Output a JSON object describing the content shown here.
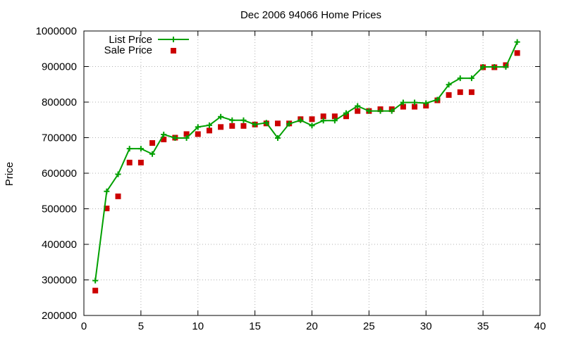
{
  "chart_data": {
    "type": "line",
    "title": "Dec 2006 94066 Home Prices",
    "xlabel": "",
    "ylabel": "Price",
    "xlim": [
      0,
      40
    ],
    "ylim": [
      200000,
      1000000
    ],
    "xticks": [
      0,
      5,
      10,
      15,
      20,
      25,
      30,
      35,
      40
    ],
    "yticks": [
      200000,
      300000,
      400000,
      500000,
      600000,
      700000,
      800000,
      900000,
      1000000
    ],
    "grid": true,
    "legend_position": "top-left",
    "series": [
      {
        "name": "List Price",
        "style": "line+cross",
        "color": "#00a000",
        "x": [
          1,
          2,
          3,
          4,
          5,
          6,
          7,
          8,
          9,
          10,
          11,
          12,
          13,
          14,
          15,
          16,
          17,
          18,
          19,
          20,
          21,
          22,
          23,
          24,
          25,
          26,
          27,
          28,
          29,
          30,
          31,
          32,
          33,
          34,
          35,
          36,
          37,
          38
        ],
        "y": [
          298000,
          549000,
          597000,
          669000,
          669000,
          654000,
          709000,
          699000,
          699000,
          730000,
          735000,
          759000,
          749000,
          749000,
          737000,
          742000,
          699000,
          739000,
          749000,
          734000,
          748000,
          748000,
          769000,
          789000,
          775000,
          775000,
          775000,
          799000,
          799000,
          797000,
          807000,
          849000,
          867000,
          867000,
          899000,
          899000,
          899000,
          969000
        ]
      },
      {
        "name": "Sale Price",
        "style": "square",
        "color": "#cc0000",
        "x": [
          1,
          2,
          3,
          4,
          5,
          6,
          7,
          8,
          9,
          10,
          11,
          12,
          13,
          14,
          15,
          16,
          17,
          18,
          19,
          20,
          21,
          22,
          23,
          24,
          25,
          26,
          27,
          28,
          29,
          30,
          31,
          32,
          33,
          34,
          35,
          36,
          37,
          38
        ],
        "y": [
          270000,
          501000,
          535000,
          630000,
          630000,
          685000,
          695000,
          700000,
          710000,
          710000,
          720000,
          730000,
          733000,
          733000,
          737000,
          740000,
          740000,
          740000,
          752000,
          752000,
          760000,
          760000,
          760000,
          775000,
          775000,
          780000,
          780000,
          787000,
          787000,
          790000,
          805000,
          820000,
          828000,
          828000,
          898000,
          898000,
          904000,
          938000
        ]
      }
    ]
  }
}
